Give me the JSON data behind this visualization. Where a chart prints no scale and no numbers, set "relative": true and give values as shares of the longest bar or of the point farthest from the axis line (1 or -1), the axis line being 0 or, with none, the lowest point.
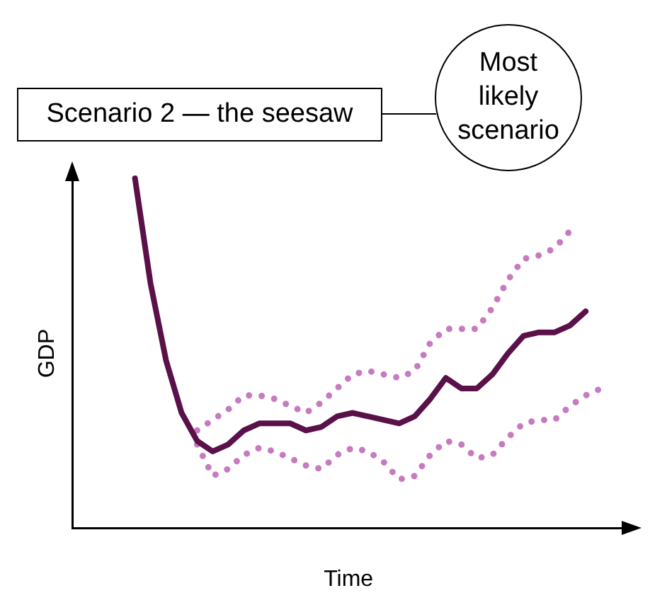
{
  "chart_data": {
    "type": "line",
    "relative": true,
    "xlabel": "Time",
    "ylabel": "GDP",
    "annotations": [
      "Scenario 2 — the seesaw",
      "Most likely scenario"
    ],
    "categories": [
      null,
      null,
      null,
      null,
      null,
      null,
      null,
      null,
      null,
      null,
      null,
      null,
      null,
      null,
      null,
      null,
      null,
      null,
      null,
      null,
      null,
      null,
      null,
      null,
      null,
      null,
      null,
      null,
      null,
      null,
      null
    ],
    "grid": false,
    "legend": false,
    "marker": "none",
    "series": [
      {
        "color": "#5a1048",
        "line_style": "solid",
        "values": [
          1.0,
          0.7,
          0.48,
          0.33,
          0.25,
          0.22,
          0.24,
          0.28,
          0.3,
          0.3,
          0.3,
          0.28,
          0.29,
          0.32,
          0.33,
          0.32,
          0.31,
          0.3,
          0.32,
          0.37,
          0.43,
          0.4,
          0.4,
          0.44,
          0.5,
          0.55,
          0.56,
          0.56,
          0.58,
          0.62,
          null
        ]
      },
      {
        "color": "#c77bbf",
        "line_style": "dotted",
        "values": [
          null,
          null,
          null,
          null,
          0.28,
          0.31,
          0.34,
          0.38,
          0.38,
          0.37,
          0.35,
          0.33,
          0.36,
          0.4,
          0.44,
          0.45,
          0.44,
          0.43,
          0.45,
          0.53,
          0.57,
          0.57,
          0.57,
          0.63,
          0.71,
          0.77,
          0.78,
          0.8,
          0.85,
          null,
          null
        ]
      },
      {
        "color": "#c77bbf",
        "line_style": "dotted",
        "values": [
          null,
          null,
          null,
          null,
          0.24,
          0.15,
          0.17,
          0.21,
          0.23,
          0.22,
          0.2,
          0.18,
          0.17,
          0.21,
          0.23,
          0.22,
          0.19,
          0.14,
          0.15,
          0.21,
          0.25,
          0.24,
          0.2,
          0.21,
          0.26,
          0.3,
          0.31,
          0.31,
          0.35,
          0.38,
          0.4
        ]
      }
    ]
  }
}
